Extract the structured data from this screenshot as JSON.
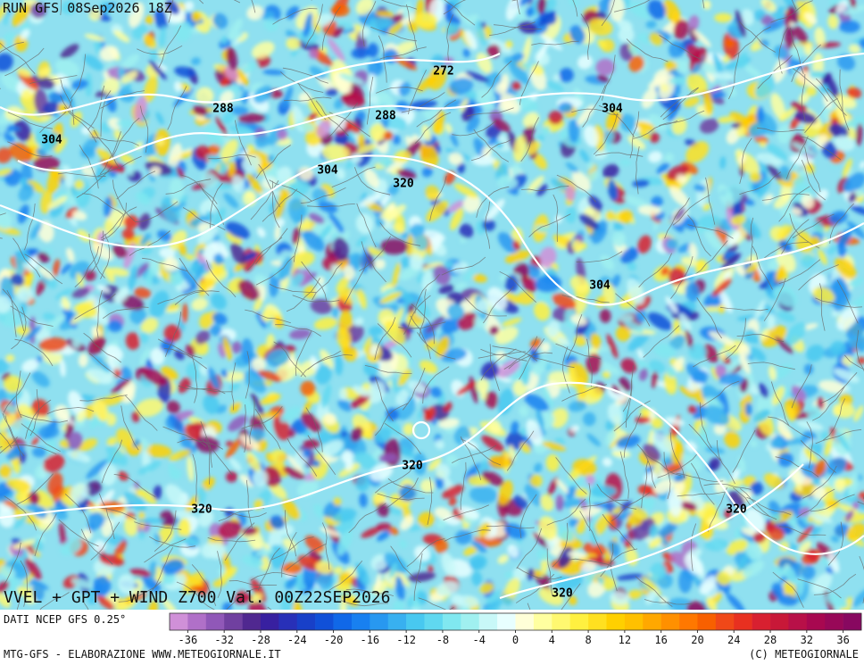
{
  "header": {
    "run": "RUN GFS 08Sep2026 18Z"
  },
  "map": {
    "contour_labels": [
      "272",
      "288",
      "288",
      "304",
      "304",
      "304",
      "320",
      "304",
      "320",
      "320",
      "320",
      "320"
    ],
    "title": "VVEL + GPT + WIND Z700 Val. 00Z22SEP2026"
  },
  "legend": {
    "source": "DATI NCEP GFS 0.25°",
    "lim": [
      -38,
      38
    ],
    "ticks": [
      -36,
      -32,
      -28,
      -24,
      -20,
      -16,
      -12,
      -8,
      -4,
      0,
      4,
      8,
      12,
      16,
      20,
      24,
      28,
      32,
      36
    ],
    "colors": [
      "#d090d8",
      "#b070c8",
      "#9058b8",
      "#7040a0",
      "#502890",
      "#3820a0",
      "#2830b8",
      "#1840c8",
      "#1050d8",
      "#1068e8",
      "#1880f0",
      "#2898f0",
      "#38b0f0",
      "#48c8f0",
      "#60d8f0",
      "#80e8f0",
      "#a0f0f0",
      "#c8f8f8",
      "#e8ffff",
      "#ffffd8",
      "#ffffa0",
      "#fff870",
      "#fff040",
      "#ffe020",
      "#ffd000",
      "#ffc000",
      "#ffa800",
      "#ff9000",
      "#ff7800",
      "#f86000",
      "#f04818",
      "#e83020",
      "#d82030",
      "#c81838",
      "#b81048",
      "#a80850",
      "#980858",
      "#880860"
    ]
  },
  "footer": {
    "left": "MTG-GFS - ELABORAZIONE WWW.METEOGIORNALE.IT",
    "right": "(C) METEOGIORNALE"
  }
}
